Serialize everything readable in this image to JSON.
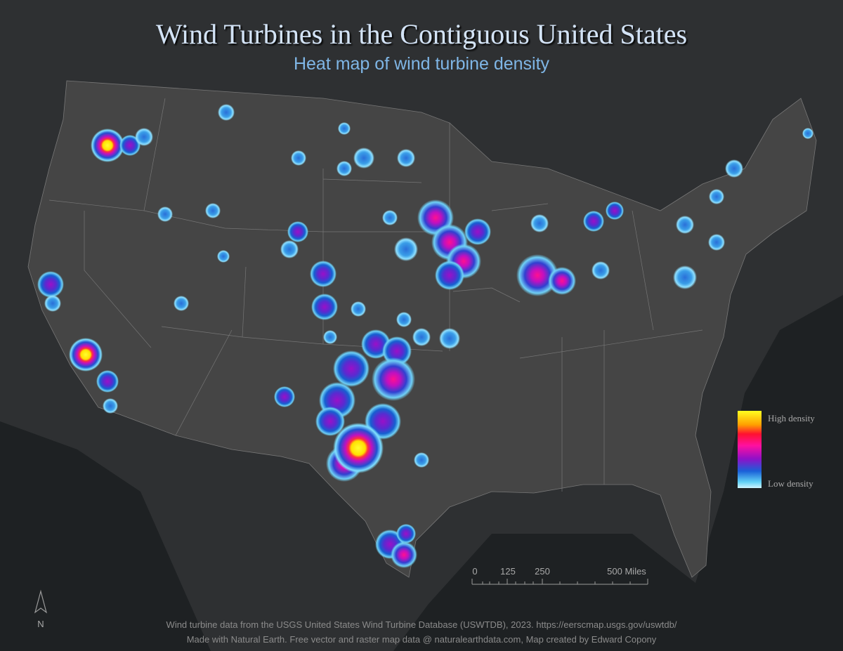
{
  "title": "Wind Turbines in the Contiguous United States",
  "subtitle": "Heat map of wind turbine density",
  "legend": {
    "high": "High density",
    "low": "Low density"
  },
  "scale_bar": {
    "labels": [
      "0",
      "125",
      "250",
      "500 Miles"
    ]
  },
  "north_arrow": "N",
  "credits": [
    "Wind turbine data from the USGS United States Wind Turbine Database (USWTDB), 2023. https://eerscmap.usgs.gov/uswtdb/",
    "Made with Natural Earth. Free vector and raster map data @ naturalearthdata.com, Map created by Edward Copony"
  ]
}
